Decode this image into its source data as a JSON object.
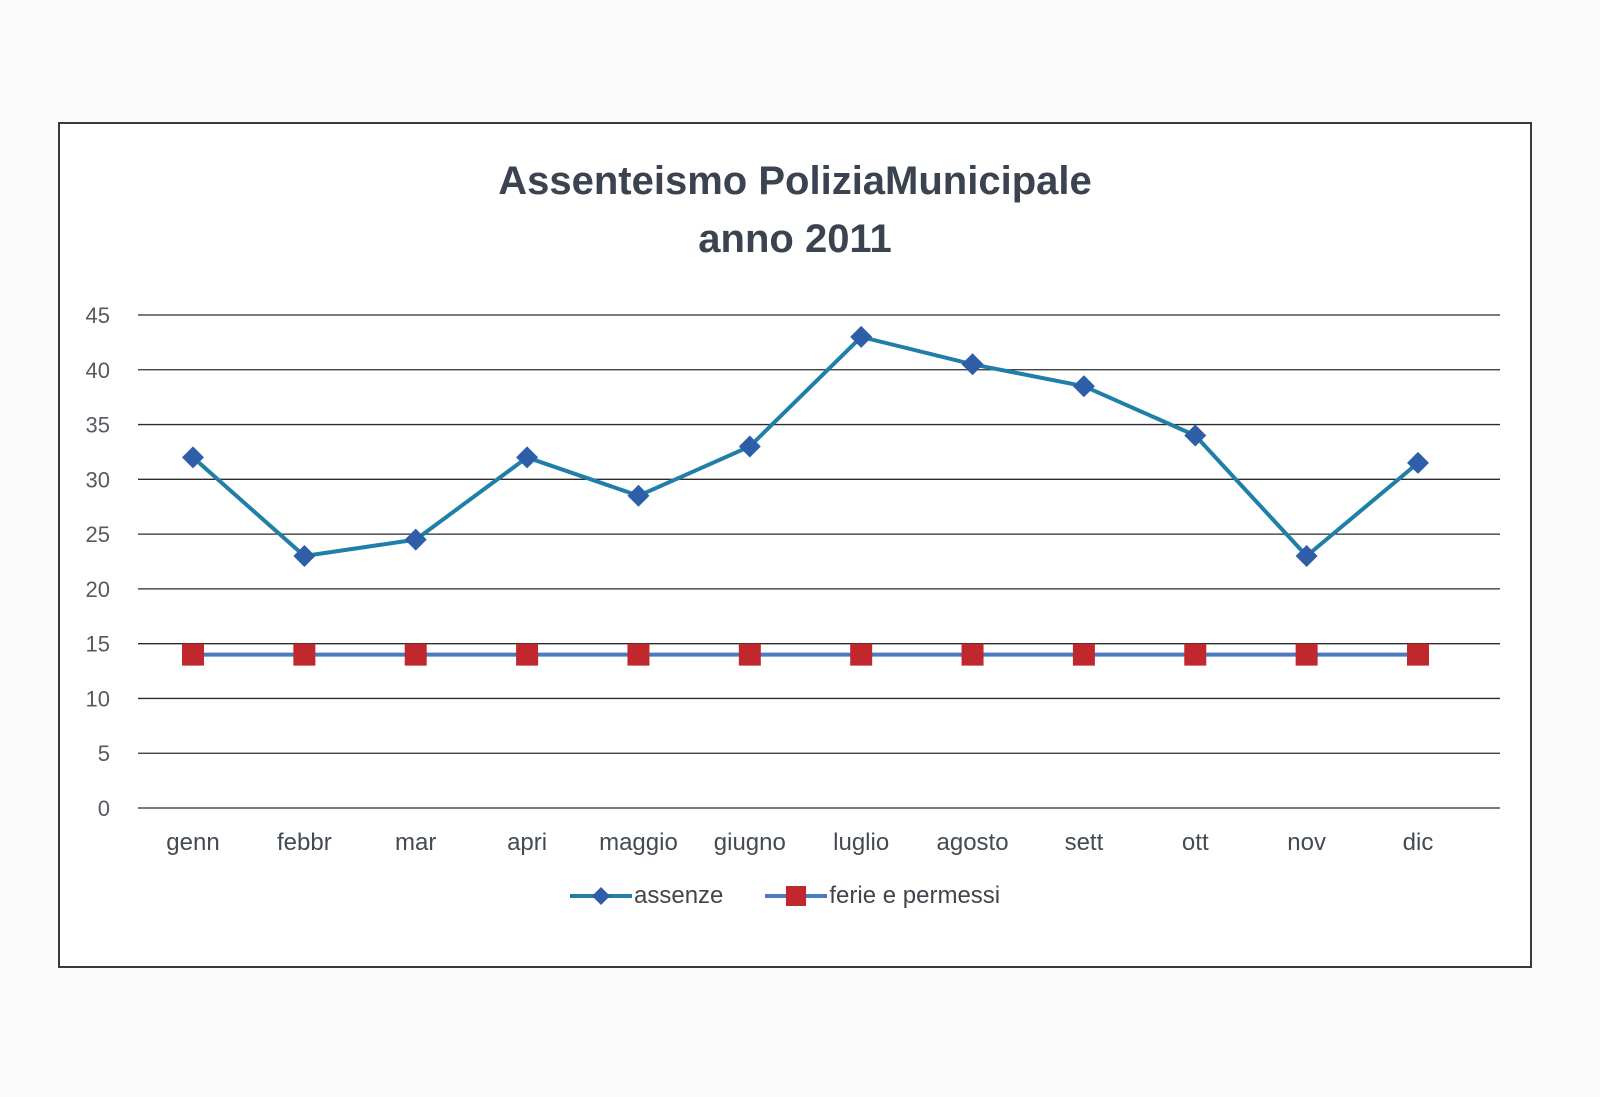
{
  "chart_data": {
    "type": "line",
    "title": "Assenteismo PoliziaMunicipale",
    "subtitle": "anno 2011",
    "categories": [
      "genn",
      "febbr",
      "mar",
      "apri",
      "maggio",
      "giugno",
      "luglio",
      "agosto",
      "sett",
      "ott",
      "nov",
      "dic"
    ],
    "series": [
      {
        "name": "assenze",
        "color": "#1f7fa8",
        "marker": "diamond",
        "marker_color": "#2f5ea8",
        "values": [
          32,
          23,
          24.5,
          32,
          28.5,
          33,
          43,
          40.5,
          38.5,
          34,
          23,
          31.5
        ]
      },
      {
        "name": "ferie e permessi",
        "color": "#4d79c0",
        "marker": "square",
        "marker_color": "#c0282d",
        "values": [
          14,
          14,
          14,
          14,
          14,
          14,
          14,
          14,
          14,
          14,
          14,
          14
        ]
      }
    ],
    "ylim": [
      0,
      45
    ],
    "yticks": [
      "0",
      "5",
      "10",
      "15",
      "20",
      "25",
      "30",
      "35",
      "40",
      "45"
    ],
    "grid": true,
    "legend_position": "bottom"
  }
}
